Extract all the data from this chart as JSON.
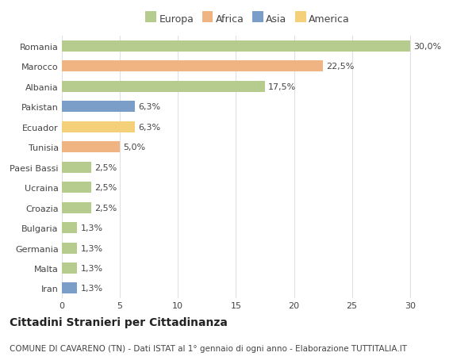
{
  "categories": [
    "Romania",
    "Marocco",
    "Albania",
    "Pakistan",
    "Ecuador",
    "Tunisia",
    "Paesi Bassi",
    "Ucraina",
    "Croazia",
    "Bulgaria",
    "Germania",
    "Malta",
    "Iran"
  ],
  "values": [
    30.0,
    22.5,
    17.5,
    6.3,
    6.3,
    5.0,
    2.5,
    2.5,
    2.5,
    1.3,
    1.3,
    1.3,
    1.3
  ],
  "labels": [
    "30,0%",
    "22,5%",
    "17,5%",
    "6,3%",
    "6,3%",
    "5,0%",
    "2,5%",
    "2,5%",
    "2,5%",
    "1,3%",
    "1,3%",
    "1,3%",
    "1,3%"
  ],
  "colors": [
    "#b5cc8e",
    "#f0b482",
    "#b5cc8e",
    "#7b9ec9",
    "#f5d07a",
    "#f0b482",
    "#b5cc8e",
    "#b5cc8e",
    "#b5cc8e",
    "#b5cc8e",
    "#b5cc8e",
    "#b5cc8e",
    "#7b9ec9"
  ],
  "legend_labels": [
    "Europa",
    "Africa",
    "Asia",
    "America"
  ],
  "legend_colors": [
    "#b5cc8e",
    "#f0b482",
    "#7b9ec9",
    "#f5d07a"
  ],
  "xlim": [
    0,
    32
  ],
  "xticks": [
    0,
    5,
    10,
    15,
    20,
    25,
    30
  ],
  "title": "Cittadini Stranieri per Cittadinanza",
  "subtitle": "COMUNE DI CAVARENO (TN) - Dati ISTAT al 1° gennaio di ogni anno - Elaborazione TUTTITALIA.IT",
  "background_color": "#ffffff",
  "grid_color": "#e0e0e0",
  "text_color": "#444444",
  "title_fontsize": 10,
  "subtitle_fontsize": 7.5,
  "label_fontsize": 8,
  "tick_fontsize": 8,
  "legend_fontsize": 9,
  "bar_height": 0.55
}
